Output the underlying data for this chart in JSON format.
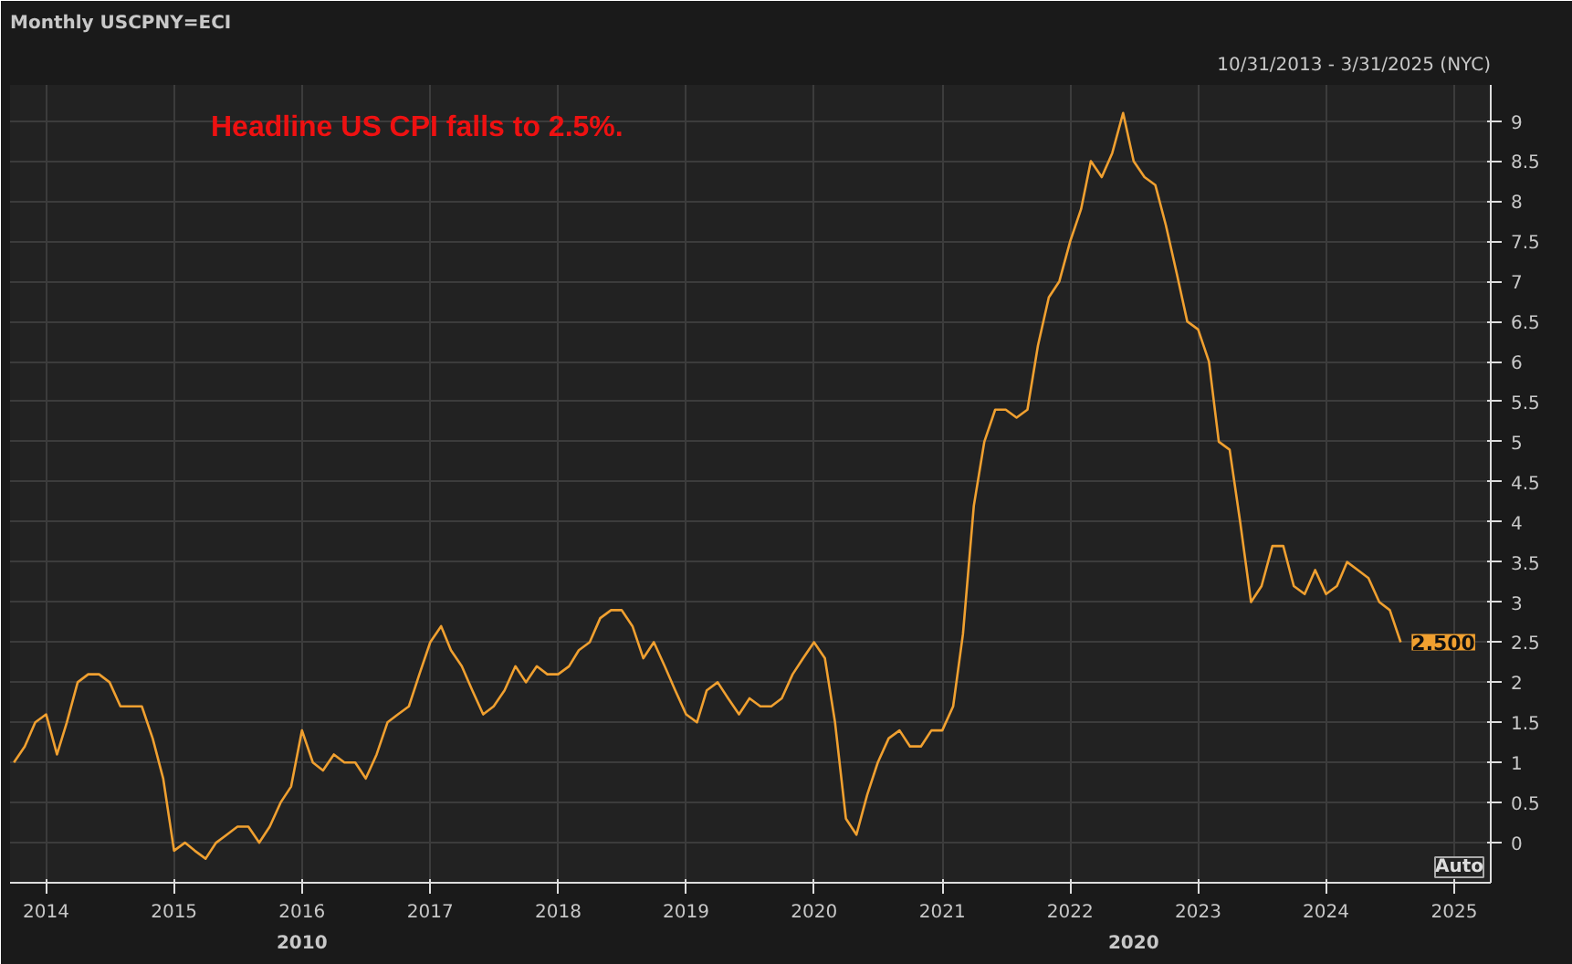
{
  "chart_data": {
    "type": "line",
    "title": "Monthly USCPNY=ECI",
    "subtitle": "10/31/2013 - 3/31/2025 (NYC)",
    "x": [
      "2013-10",
      "2013-11",
      "2013-12",
      "2014-01",
      "2014-02",
      "2014-03",
      "2014-04",
      "2014-05",
      "2014-06",
      "2014-07",
      "2014-08",
      "2014-09",
      "2014-10",
      "2014-11",
      "2014-12",
      "2015-01",
      "2015-02",
      "2015-03",
      "2015-04",
      "2015-05",
      "2015-06",
      "2015-07",
      "2015-08",
      "2015-09",
      "2015-10",
      "2015-11",
      "2015-12",
      "2016-01",
      "2016-02",
      "2016-03",
      "2016-04",
      "2016-05",
      "2016-06",
      "2016-07",
      "2016-08",
      "2016-09",
      "2016-10",
      "2016-11",
      "2016-12",
      "2017-01",
      "2017-02",
      "2017-03",
      "2017-04",
      "2017-05",
      "2017-06",
      "2017-07",
      "2017-08",
      "2017-09",
      "2017-10",
      "2017-11",
      "2017-12",
      "2018-01",
      "2018-02",
      "2018-03",
      "2018-04",
      "2018-05",
      "2018-06",
      "2018-07",
      "2018-08",
      "2018-09",
      "2018-10",
      "2018-11",
      "2018-12",
      "2019-01",
      "2019-02",
      "2019-03",
      "2019-04",
      "2019-05",
      "2019-06",
      "2019-07",
      "2019-08",
      "2019-09",
      "2019-10",
      "2019-11",
      "2019-12",
      "2020-01",
      "2020-02",
      "2020-03",
      "2020-04",
      "2020-05",
      "2020-06",
      "2020-07",
      "2020-08",
      "2020-09",
      "2020-10",
      "2020-11",
      "2020-12",
      "2021-01",
      "2021-02",
      "2021-03",
      "2021-04",
      "2021-05",
      "2021-06",
      "2021-07",
      "2021-08",
      "2021-09",
      "2021-10",
      "2021-11",
      "2021-12",
      "2022-01",
      "2022-02",
      "2022-03",
      "2022-04",
      "2022-05",
      "2022-06",
      "2022-07",
      "2022-08",
      "2022-09",
      "2022-10",
      "2022-11",
      "2022-12",
      "2023-01",
      "2023-02",
      "2023-03",
      "2023-04",
      "2023-05",
      "2023-06",
      "2023-07",
      "2023-08",
      "2023-09",
      "2023-10",
      "2023-11",
      "2023-12",
      "2024-01",
      "2024-02",
      "2024-03",
      "2024-04",
      "2024-05",
      "2024-06",
      "2024-07",
      "2024-08"
    ],
    "series": [
      {
        "color": "#f0a030",
        "values": [
          1.0,
          1.2,
          1.5,
          1.6,
          1.1,
          1.5,
          2.0,
          2.1,
          2.1,
          2.0,
          1.7,
          1.7,
          1.7,
          1.3,
          0.8,
          -0.1,
          0.0,
          -0.1,
          -0.2,
          0.0,
          0.1,
          0.2,
          0.2,
          0.0,
          0.2,
          0.5,
          0.7,
          1.4,
          1.0,
          0.9,
          1.1,
          1.0,
          1.0,
          0.8,
          1.1,
          1.5,
          1.6,
          1.7,
          2.1,
          2.5,
          2.7,
          2.4,
          2.2,
          1.9,
          1.6,
          1.7,
          1.9,
          2.2,
          2.0,
          2.2,
          2.1,
          2.1,
          2.2,
          2.4,
          2.5,
          2.8,
          2.9,
          2.9,
          2.7,
          2.3,
          2.5,
          2.2,
          1.9,
          1.6,
          1.5,
          1.9,
          2.0,
          1.8,
          1.6,
          1.8,
          1.7,
          1.7,
          1.8,
          2.1,
          2.3,
          2.5,
          2.3,
          1.5,
          0.3,
          0.1,
          0.6,
          1.0,
          1.3,
          1.4,
          1.2,
          1.2,
          1.4,
          1.4,
          1.7,
          2.6,
          4.2,
          5.0,
          5.4,
          5.4,
          5.3,
          5.4,
          6.2,
          6.8,
          7.0,
          7.5,
          7.9,
          8.5,
          8.3,
          8.6,
          9.1,
          8.5,
          8.3,
          8.2,
          7.7,
          7.1,
          6.5,
          6.4,
          6.0,
          5.0,
          4.9,
          4.0,
          3.0,
          3.2,
          3.7,
          3.7,
          3.2,
          3.1,
          3.4,
          3.1,
          3.2,
          3.5,
          3.4,
          3.3,
          3.0,
          2.9,
          2.5
        ]
      }
    ],
    "xlim": [
      "2013-09-20",
      "2025-04-15"
    ],
    "xticks": [
      "2014",
      "2015",
      "2016",
      "2017",
      "2018",
      "2019",
      "2020",
      "2021",
      "2022",
      "2023",
      "2024",
      "2025"
    ],
    "ylim": [
      -0.5,
      9.45
    ],
    "yticks": [
      0,
      0.5,
      1,
      1.5,
      2,
      2.5,
      3,
      3.5,
      4,
      4.5,
      5,
      5.5,
      6,
      6.5,
      7,
      7.5,
      8,
      8.5,
      9
    ],
    "grid": true,
    "line_style": "solid",
    "marker": "none",
    "annotations": [
      "Headline US CPI falls to 2.5%.",
      {
        "text": "2.500",
        "x": "2024-08",
        "y": 2.5
      },
      "2010",
      "2020",
      "Auto"
    ]
  }
}
